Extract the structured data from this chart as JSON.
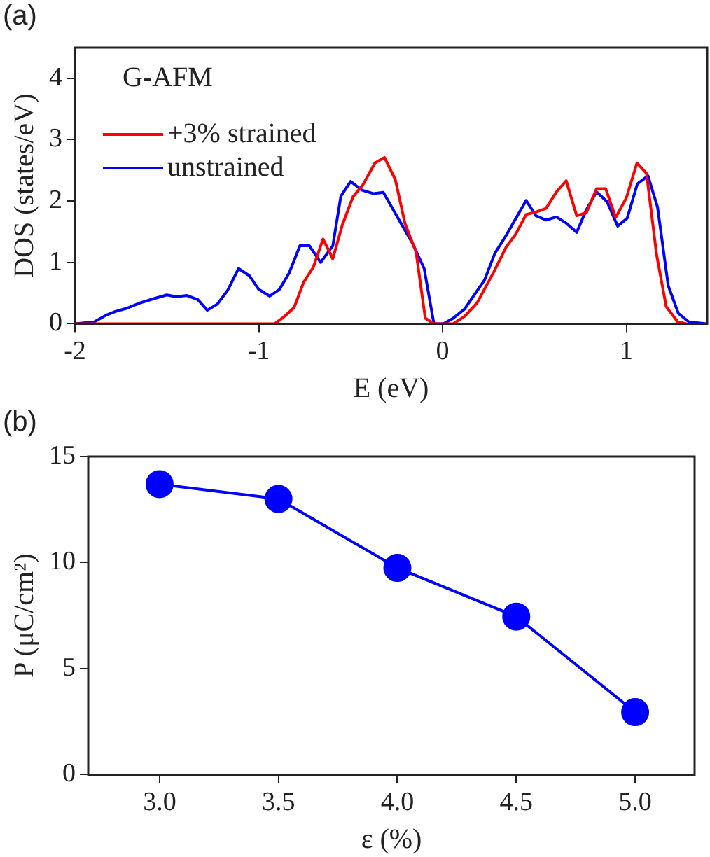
{
  "chart_data": [
    {
      "type": "line",
      "xlabel": "E (eV)",
      "ylabel": "DOS (states/eV)",
      "annotations": [
        "(a)",
        "G-AFM"
      ],
      "legend": "top left",
      "marker": "none",
      "xlim": [
        -2,
        1.44
      ],
      "xticks": [
        -2,
        -1,
        0,
        1
      ],
      "ylim": [
        0,
        4.5
      ],
      "yticks": [
        0,
        1,
        2,
        3,
        4
      ],
      "series": [
        {
          "name": "+3% strained",
          "color": "#ff0000",
          "x": [
            -2,
            -0.913,
            -0.868,
            -0.808,
            -0.755,
            -0.703,
            -0.65,
            -0.597,
            -0.545,
            -0.487,
            -0.434,
            -0.368,
            -0.316,
            -0.257,
            -0.204,
            -0.144,
            -0.094,
            -0.047,
            0.058,
            0.12,
            0.188,
            0.28,
            0.346,
            0.398,
            0.455,
            0.508,
            0.563,
            0.62,
            0.673,
            0.73,
            0.783,
            0.838,
            0.888,
            0.942,
            1.0,
            1.058,
            1.11,
            1.165,
            1.217,
            1.28,
            1.327
          ],
          "values": [
            0,
            0,
            0.1,
            0.26,
            0.68,
            0.92,
            1.38,
            1.06,
            1.61,
            2.07,
            2.26,
            2.62,
            2.71,
            2.35,
            1.63,
            1.17,
            0.09,
            0,
            0,
            0.12,
            0.34,
            0.85,
            1.25,
            1.46,
            1.78,
            1.82,
            1.88,
            2.15,
            2.33,
            1.76,
            1.81,
            2.2,
            2.2,
            1.73,
            2.05,
            2.62,
            2.45,
            1.12,
            0.28,
            0.03,
            0
          ]
        },
        {
          "name": "unstrained",
          "color": "#0000ff",
          "x": [
            -2,
            -1.895,
            -1.83,
            -1.78,
            -1.72,
            -1.645,
            -1.57,
            -1.5,
            -1.45,
            -1.39,
            -1.33,
            -1.28,
            -1.225,
            -1.17,
            -1.11,
            -1.05,
            -1,
            -0.94,
            -0.887,
            -0.834,
            -0.776,
            -0.724,
            -0.663,
            -0.597,
            -0.553,
            -0.5,
            -0.44,
            -0.375,
            -0.322,
            -0.244,
            -0.165,
            -0.1,
            -0.047,
            0.005,
            0.058,
            0.12,
            0.228,
            0.285,
            0.346,
            0.455,
            0.508,
            0.563,
            0.62,
            0.673,
            0.73,
            0.783,
            0.838,
            0.895,
            0.953,
            1.005,
            1.06,
            1.118,
            1.17,
            1.228,
            1.283,
            1.34,
            1.435
          ],
          "values": [
            0,
            0.03,
            0.14,
            0.2,
            0.25,
            0.34,
            0.41,
            0.47,
            0.44,
            0.46,
            0.39,
            0.22,
            0.32,
            0.54,
            0.9,
            0.78,
            0.56,
            0.45,
            0.56,
            0.83,
            1.27,
            1.27,
            1.0,
            1.27,
            2.08,
            2.32,
            2.18,
            2.12,
            2.14,
            1.73,
            1.32,
            0.9,
            0,
            0,
            0.09,
            0.24,
            0.71,
            1.15,
            1.44,
            2.01,
            1.76,
            1.69,
            1.74,
            1.64,
            1.49,
            1.86,
            2.15,
            1.99,
            1.59,
            1.72,
            2.28,
            2.41,
            1.9,
            0.62,
            0.17,
            0.03,
            0
          ]
        }
      ]
    },
    {
      "type": "line",
      "xlabel": "ε (%)",
      "ylabel": "P (μC/cm²)",
      "annotations": [
        "(b)"
      ],
      "marker": "circle",
      "xlim": [
        2.7,
        5.25
      ],
      "xticks": [
        {
          "value": 3,
          "label": "3.0"
        },
        3.5,
        {
          "value": 4,
          "label": "4.0"
        },
        4.5,
        {
          "value": 5,
          "label": "5.0"
        }
      ],
      "ylim": [
        0,
        15
      ],
      "yticks": [
        0,
        5,
        10,
        15
      ],
      "series": [
        {
          "color": "#0000ff",
          "x": [
            3.0,
            3.5,
            4.0,
            4.5,
            5.0
          ],
          "values": [
            13.7,
            13.0,
            9.75,
            7.45,
            2.95
          ]
        }
      ]
    }
  ]
}
